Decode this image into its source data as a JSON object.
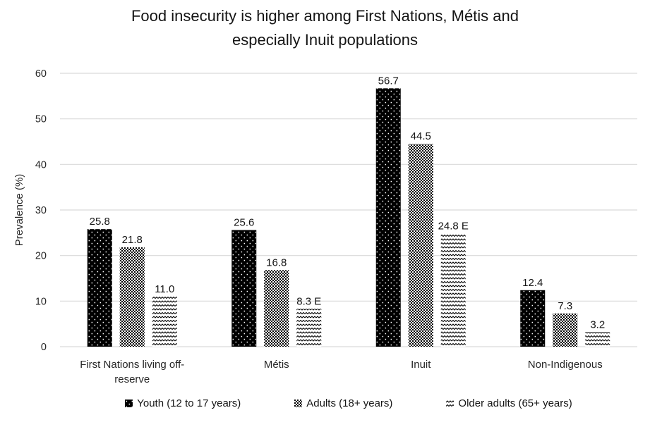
{
  "title": {
    "line1": "Food insecurity is higher among First Nations, Métis and",
    "line2": "especially Inuit populations"
  },
  "chart_data": {
    "type": "bar",
    "title": "Food insecurity is higher among First Nations, Métis and especially Inuit populations",
    "xlabel": "",
    "ylabel": "Prevalence (%)",
    "ylim": [
      0,
      60
    ],
    "yticks": [
      0,
      10,
      20,
      30,
      40,
      50,
      60
    ],
    "grid": true,
    "legend_position": "bottom",
    "categories": [
      "First Nations living off-reserve",
      "Métis",
      "Inuit",
      "Non-Indigenous"
    ],
    "categories_wrapped": [
      [
        "First Nations living off-",
        "reserve"
      ],
      [
        "Métis"
      ],
      [
        "Inuit"
      ],
      [
        "Non-Indigenous"
      ]
    ],
    "series": [
      {
        "name": "Youth (12 to 17 years)",
        "pattern": "black-dots",
        "values": [
          25.8,
          25.6,
          56.7,
          12.4
        ],
        "labels": [
          "25.8",
          "25.6",
          "56.7",
          "12.4"
        ]
      },
      {
        "name": "Adults (18+ years)",
        "pattern": "checker",
        "values": [
          21.8,
          16.8,
          44.5,
          7.3
        ],
        "labels": [
          "21.8",
          "16.8",
          "44.5",
          "7.3"
        ]
      },
      {
        "name": "Older adults (65+ years)",
        "pattern": "zigzag",
        "values": [
          11.0,
          8.3,
          24.8,
          3.2
        ],
        "labels": [
          "11.0",
          "8.3 E",
          "24.8 E",
          "3.2"
        ]
      }
    ]
  },
  "colors": {
    "background": "#ffffff",
    "bar_ink": "#000000",
    "gridline": "#d9d9d9",
    "axis_line": "#d9d9d9",
    "text": "#151515",
    "tick_text": "#262626"
  }
}
